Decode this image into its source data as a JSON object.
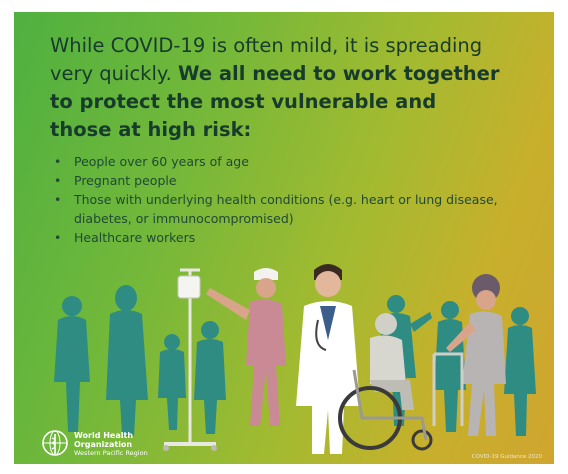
{
  "headline": {
    "intro": "While COVID-19 is often mild, it is spreading very quickly.",
    "emphasis_line1": "We all need to work together",
    "emphasis_line2": "to protect the most vulnerable and",
    "emphasis_line3": "those at high risk:"
  },
  "risk_groups": [
    "People over 60 years of age",
    "Pregnant people",
    "Those with underlying health conditions (e.g. heart or lung disease, diabetes, or immunocompromised)",
    "Healthcare workers"
  ],
  "bullet_glyph": "•",
  "organization": {
    "name_line1": "World Health",
    "name_line2": "Organization",
    "region": "Western Pacific Region"
  },
  "footer_note": "COVID-19 Guidance 2020",
  "colors": {
    "gradient_left": "#4fb040",
    "gradient_right": "#d0a52e",
    "text_dark": "#173b2c",
    "silhouette": "#2f8c83",
    "doctor_coat": "#ffffff",
    "skin": "#d9a58a"
  }
}
